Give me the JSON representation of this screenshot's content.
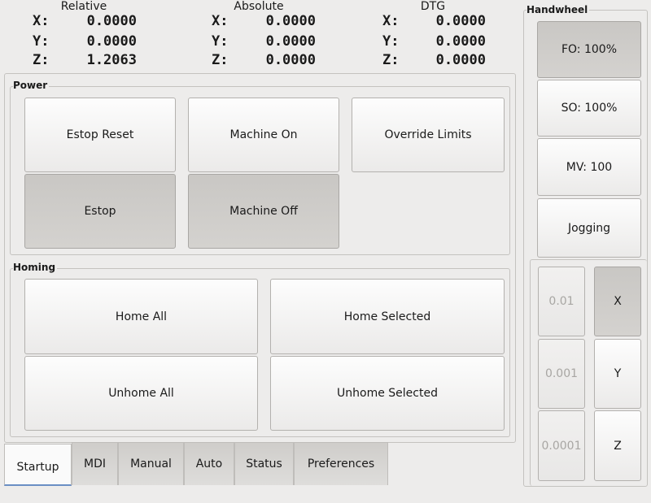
{
  "dro": {
    "relative": {
      "title": "Relative",
      "x": "0.0000",
      "y": "0.0000",
      "z": "1.2063"
    },
    "absolute": {
      "title": "Absolute",
      "x": "0.0000",
      "y": "0.0000",
      "z": "0.0000"
    },
    "dtg": {
      "title": "DTG",
      "x": "0.0000",
      "y": "0.0000",
      "z": "0.0000"
    },
    "labels": {
      "x": "X:",
      "y": "Y:",
      "z": "Z:"
    }
  },
  "power": {
    "title": "Power",
    "estop_reset": "Estop Reset",
    "machine_on": "Machine On",
    "override_limits": "Override Limits",
    "estop": "Estop",
    "machine_off": "Machine Off"
  },
  "homing": {
    "title": "Homing",
    "home_all": "Home All",
    "home_selected": "Home Selected",
    "unhome_all": "Unhome All",
    "unhome_selected": "Unhome Selected"
  },
  "tabs": [
    {
      "label": "Startup",
      "active": true
    },
    {
      "label": "MDI"
    },
    {
      "label": "Manual"
    },
    {
      "label": "Auto"
    },
    {
      "label": "Status"
    },
    {
      "label": "Preferences"
    }
  ],
  "handwheel": {
    "title": "Handwheel",
    "fo": "FO: 100%",
    "so": "SO: 100%",
    "mv": "MV: 100",
    "jogging": "Jogging",
    "increments": [
      "0.01",
      "0.001",
      "0.0001"
    ],
    "axes": [
      "X",
      "Y",
      "Z"
    ],
    "selected_axis": "X"
  }
}
